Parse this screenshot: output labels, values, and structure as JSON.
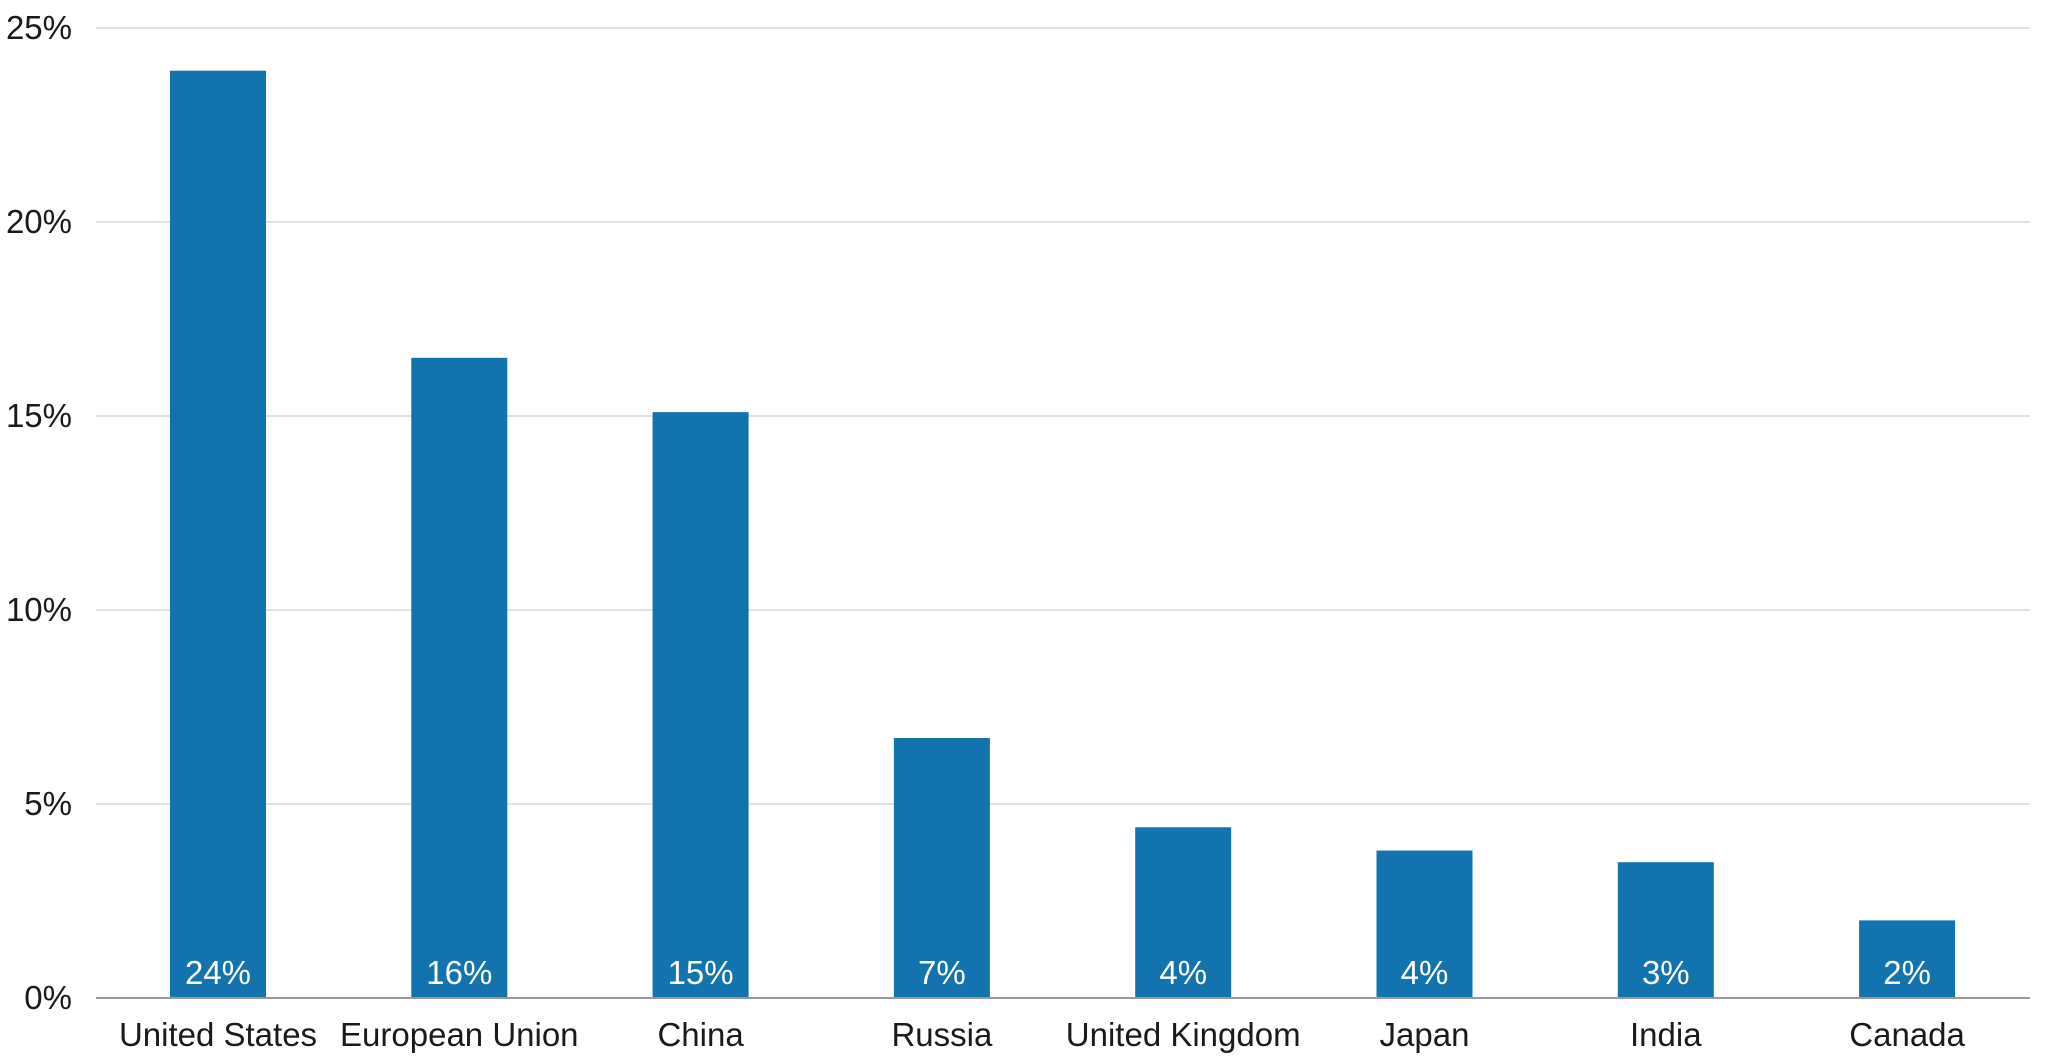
{
  "chart_data": {
    "type": "bar",
    "categories": [
      "United States",
      "European Union",
      "China",
      "Russia",
      "United Kingdom",
      "Japan",
      "India",
      "Canada"
    ],
    "values": [
      23.9,
      16.5,
      15.1,
      6.7,
      4.4,
      3.8,
      3.5,
      2.0
    ],
    "value_labels": [
      "24%",
      "16%",
      "15%",
      "7%",
      "4%",
      "4%",
      "3%",
      "2%"
    ],
    "title": "",
    "xlabel": "",
    "ylabel": "",
    "ylim": [
      0,
      25
    ],
    "yticks": [
      0,
      5,
      10,
      15,
      20,
      25
    ],
    "ytick_labels": [
      "0%",
      "5%",
      "10%",
      "15%",
      "20%",
      "25%"
    ],
    "grid": true,
    "legend": "none",
    "colors": {
      "bar": "#1273ae"
    }
  }
}
